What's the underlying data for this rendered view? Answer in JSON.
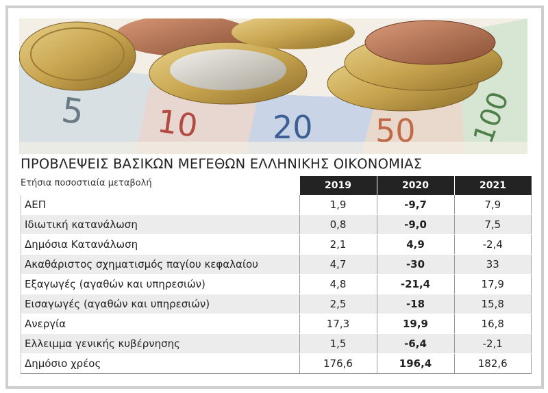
{
  "header": {
    "title": "ΠΡΟΒΛΕΨΕΙΣ ΒΑΣΙΚΩΝ ΜΕΓΕΘΩΝ ΕΛΛΗΝΙΚΗΣ ΟΙΚΟΝΟΜΙΑΣ",
    "subtitle": "Ετήσια ποσοστιαία μεταβολή"
  },
  "table": {
    "columns": [
      "2019",
      "2020",
      "2021"
    ],
    "rows": [
      {
        "label": "ΑΕΠ",
        "values": [
          "1,9",
          "-9,7",
          "7,9"
        ]
      },
      {
        "label": "Ιδιωτική κατανάλωση",
        "values": [
          "0,8",
          "-9,0",
          "7,5"
        ]
      },
      {
        "label": "Δημόσια Κατανάλωση",
        "values": [
          "2,1",
          "4,9",
          "-2,4"
        ]
      },
      {
        "label": "Ακαθάριστος σχηματισμός παγίου κεφαλαίου",
        "values": [
          "4,7",
          "-30",
          "33"
        ]
      },
      {
        "label": "Εξαγωγές (αγαθών και υπηρεσιών)",
        "values": [
          "4,8",
          "-21,4",
          "17,9"
        ]
      },
      {
        "label": "Εισαγωγές (αγαθών και υπηρεσιών)",
        "values": [
          "2,5",
          "-18",
          "15,8"
        ]
      },
      {
        "label": "Ανεργία",
        "values": [
          "17,3",
          "19,9",
          "16,8"
        ]
      },
      {
        "label": "Ελλειμμα γενικής κυβέρνησης",
        "values": [
          "1,5",
          "-6,4",
          "-2,1"
        ]
      },
      {
        "label": "Δημόσιο χρέος",
        "values": [
          "176,6",
          "196,4",
          "182,6"
        ]
      }
    ]
  }
}
